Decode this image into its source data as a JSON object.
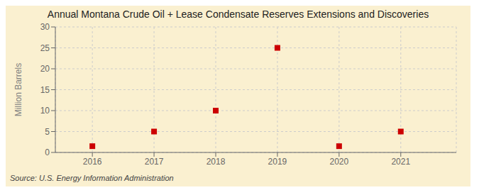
{
  "chart_data": {
    "type": "scatter",
    "title": "Annual Montana Crude Oil + Lease Condensate Reserves Extensions and Discoveries",
    "y_label": "Million Barrels",
    "annotations": [
      "Source: U.S. Energy Information Administration"
    ],
    "x": [
      2016,
      2017,
      2018,
      2019,
      2020,
      2021
    ],
    "values": [
      1.5,
      5.0,
      10.0,
      25.0,
      1.5,
      5.0
    ],
    "xlim": [
      2015.4,
      2021.9
    ],
    "xticks": [
      2016,
      2017,
      2018,
      2019,
      2020,
      2021
    ],
    "ylim": [
      0,
      30
    ],
    "yticks": [
      0,
      5,
      10,
      15,
      20,
      25,
      30
    ],
    "color": "#CC0000",
    "marker": "square",
    "grid": true
  }
}
